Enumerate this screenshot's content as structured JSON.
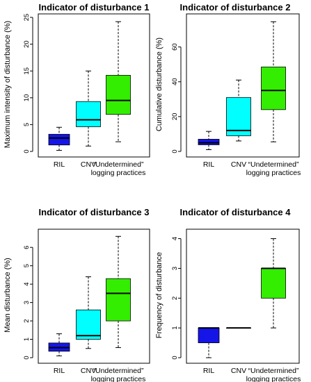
{
  "chart_data": [
    {
      "type": "box",
      "title": "Indicator of disturbance 1",
      "xlabel": "",
      "ylabel": "Maximum intensity of disturbance (%)",
      "ylim": [
        0,
        25
      ],
      "yticks": [
        0,
        5,
        10,
        15,
        20,
        25
      ],
      "categories": [
        "RIL",
        "CNV",
        "“Undetermined” logging practices"
      ],
      "boxes": [
        {
          "min": 0.2,
          "q1": 1.2,
          "median": 2.5,
          "q3": 3.2,
          "max": 4.5
        },
        {
          "min": 1.0,
          "q1": 4.6,
          "median": 5.9,
          "q3": 9.3,
          "max": 15.0
        },
        {
          "min": 1.8,
          "q1": 6.9,
          "median": 9.5,
          "q3": 14.2,
          "max": 24.2
        }
      ]
    },
    {
      "type": "box",
      "title": "Indicator of disturbance 2",
      "xlabel": "",
      "ylabel": "Cumulative disturbance (%)",
      "ylim": [
        0,
        77
      ],
      "yticks": [
        0,
        20,
        40,
        60
      ],
      "categories": [
        "RIL",
        "CNV",
        "“Undetermined” logging practices"
      ],
      "boxes": [
        {
          "min": 1.0,
          "q1": 3.8,
          "median": 5.0,
          "q3": 7.0,
          "max": 11.5
        },
        {
          "min": 6.0,
          "q1": 9.0,
          "median": 12.0,
          "q3": 31.0,
          "max": 41.0
        },
        {
          "min": 5.5,
          "q1": 24.0,
          "median": 35.0,
          "q3": 48.5,
          "max": 74.5
        }
      ]
    },
    {
      "type": "box",
      "title": "Indicator of disturbance 3",
      "xlabel": "",
      "ylabel": "Mean disturbance (%)",
      "ylim": [
        0,
        6.8
      ],
      "yticks": [
        0,
        1,
        2,
        3,
        4,
        5,
        6
      ],
      "categories": [
        "RIL",
        "CNV",
        "“Undetermined” logging practices"
      ],
      "boxes": [
        {
          "min": 0.1,
          "q1": 0.35,
          "median": 0.55,
          "q3": 0.8,
          "max": 1.3
        },
        {
          "min": 0.5,
          "q1": 1.0,
          "median": 1.2,
          "q3": 2.6,
          "max": 4.4
        },
        {
          "min": 0.55,
          "q1": 2.0,
          "median": 3.5,
          "q3": 4.3,
          "max": 6.6
        }
      ]
    },
    {
      "type": "box",
      "title": "Indicator of disturbance 4",
      "xlabel": "",
      "ylabel": "Frequency of disturbance",
      "ylim": [
        0,
        4.2
      ],
      "yticks": [
        0,
        1,
        2,
        3,
        4
      ],
      "categories": [
        "RIL",
        "CNV",
        "“Undetermined” logging practices"
      ],
      "boxes": [
        {
          "min": 0.0,
          "q1": 0.5,
          "median": 1.0,
          "q3": 1.0,
          "max": 1.0
        },
        {
          "min": 1.0,
          "q1": 1.0,
          "median": 1.0,
          "q3": 1.0,
          "max": 1.0
        },
        {
          "min": 1.0,
          "q1": 2.0,
          "median": 3.0,
          "q3": 3.0,
          "max": 4.0
        }
      ]
    }
  ],
  "colors": {
    "ril": "#1515e8",
    "cnv": "#00ffff",
    "undetermined": "#33ee00",
    "axis": "#000000"
  }
}
